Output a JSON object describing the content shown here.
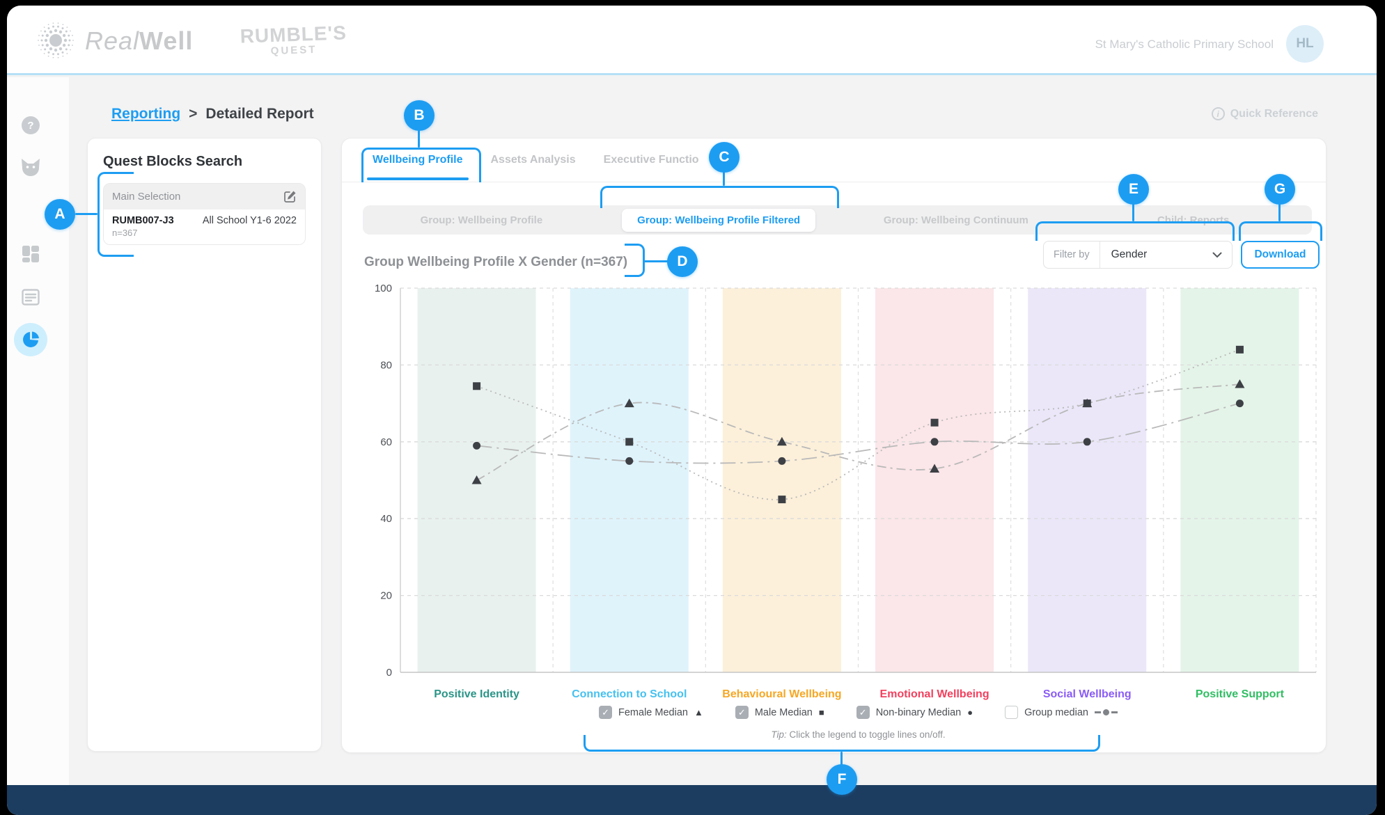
{
  "header": {
    "brand_real": "Real",
    "brand_well": "Well",
    "quest_line1": "RUMBLE'S",
    "quest_line2": "QUEST",
    "school": "St Mary's Catholic Primary School",
    "avatar_initials": "HL"
  },
  "nav": {
    "breadcrumb_link": "Reporting",
    "breadcrumb_sep": ">",
    "breadcrumb_current": "Detailed Report",
    "quick_reference": "Quick Reference",
    "info_glyph": "i"
  },
  "sidebar": {
    "icons": [
      "help-icon",
      "fox-icon",
      "modules-icon",
      "list-icon",
      "pie-chart-icon"
    ],
    "active_icon": "pie-chart-icon",
    "help_glyph": "?"
  },
  "panel": {
    "title": "Quest Blocks Search",
    "selection_header": "Main Selection",
    "code": "RUMB007-J3",
    "cohort": "All School Y1-6 2022",
    "n_label": "n=367"
  },
  "tabs": {
    "items": [
      {
        "label": "Wellbeing Profile",
        "active": true
      },
      {
        "label": "Assets Analysis",
        "active": false
      },
      {
        "label": "Executive Functio",
        "active": false
      }
    ]
  },
  "subtabs": {
    "items": [
      {
        "label": "Group: Wellbeing Profile",
        "active": false
      },
      {
        "label": "Group: Wellbeing Profile Filtered",
        "active": true
      },
      {
        "label": "Group: Wellbeing Continuum",
        "active": false
      },
      {
        "label": "Child: Reports",
        "active": false
      }
    ]
  },
  "toolbar": {
    "chart_title": "Group Wellbeing Profile X Gender (n=367)",
    "filter_label": "Filter by",
    "filter_value": "Gender",
    "download_label": "Download"
  },
  "chart_data": {
    "type": "line",
    "title": "Group Wellbeing Profile X Gender (n=367)",
    "categories": [
      "Positive Identity",
      "Connection to School",
      "Behavioural Wellbeing",
      "Emotional Wellbeing",
      "Social Wellbeing",
      "Positive Support"
    ],
    "category_colors": [
      "#2a9487",
      "#45c1f0",
      "#f6a723",
      "#f2405e",
      "#8a5cf5",
      "#2fbe62"
    ],
    "band_colors": [
      "#e8f1ee",
      "#dff3fb",
      "#fcf0da",
      "#fbe6e9",
      "#ebe7f9",
      "#e4f4e9"
    ],
    "series": [
      {
        "name": "Female Median",
        "marker": "triangle",
        "dash": "dashdot",
        "values": [
          50,
          70,
          60,
          53,
          70,
          75
        ]
      },
      {
        "name": "Male Median",
        "marker": "square",
        "dash": "dotted",
        "values": [
          74.5,
          60,
          45,
          65,
          70,
          84
        ]
      },
      {
        "name": "Non-binary Median",
        "marker": "circle",
        "dash": "longdashdot",
        "values": [
          59,
          55,
          55,
          60,
          60,
          70
        ]
      }
    ],
    "ylim": [
      0,
      100
    ],
    "yticks": [
      0,
      20,
      40,
      60,
      80,
      100
    ],
    "grid": "dashed",
    "legend_position": "bottom"
  },
  "legend": {
    "check_glyph": "✓",
    "items": [
      {
        "label": "Female Median",
        "marker": "▲",
        "checked": true
      },
      {
        "label": "Male Median",
        "marker": "■",
        "checked": true
      },
      {
        "label": "Non-binary Median",
        "marker": "●",
        "checked": true
      },
      {
        "label": "Group median",
        "marker": "line-dot",
        "checked": false
      }
    ],
    "tip_prefix": "Tip:",
    "tip_text": " Click the legend to toggle lines on/off."
  },
  "annotations": {
    "color": "#1d9df2",
    "labels": {
      "a": "A",
      "b": "B",
      "c": "C",
      "d": "D",
      "e": "E",
      "f": "F",
      "g": "G"
    }
  }
}
